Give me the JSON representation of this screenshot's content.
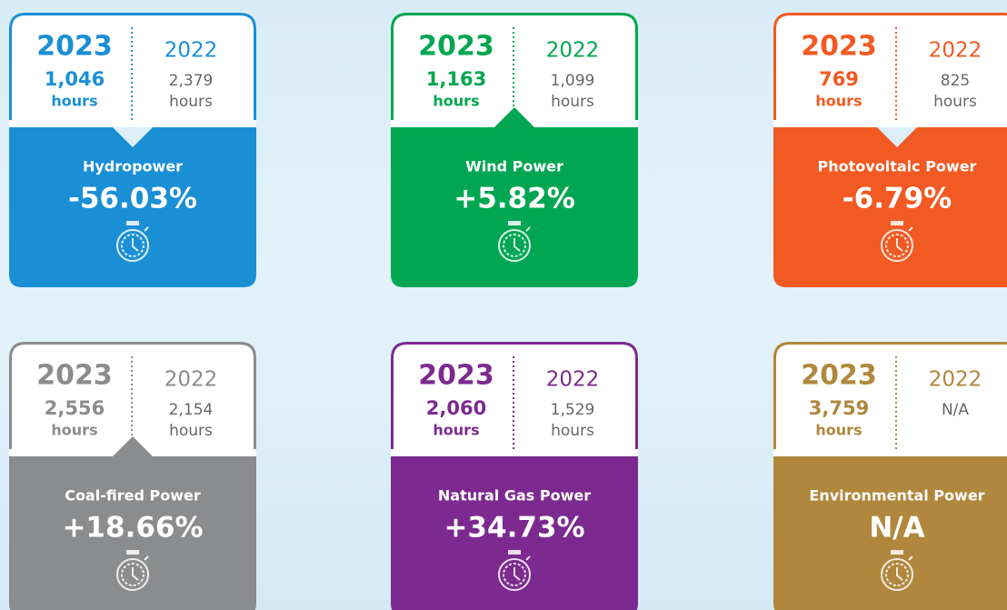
{
  "cards": [
    {
      "name": "Hydropower",
      "change": "-56.03%",
      "color": "#1b8fd5",
      "notch": "down",
      "current": {
        "year": "2023",
        "value": "1,046",
        "unit": "hours"
      },
      "previous": {
        "year": "2022",
        "value": "2,379",
        "unit": "hours"
      }
    },
    {
      "name": "Wind Power",
      "change": "+5.82%",
      "color": "#00a651",
      "notch": "up",
      "current": {
        "year": "2023",
        "value": "1,163",
        "unit": "hours"
      },
      "previous": {
        "year": "2022",
        "value": "1,099",
        "unit": "hours"
      }
    },
    {
      "name": "Photovoltaic Power",
      "change": "-6.79%",
      "color": "#f15a22",
      "notch": "down",
      "current": {
        "year": "2023",
        "value": "769",
        "unit": "hours"
      },
      "previous": {
        "year": "2022",
        "value": "825",
        "unit": "hours"
      }
    },
    {
      "name": "Coal-fired Power",
      "change": "+18.66%",
      "color": "#8b8c8e",
      "notch": "up",
      "current": {
        "year": "2023",
        "value": "2,556",
        "unit": "hours"
      },
      "previous": {
        "year": "2022",
        "value": "2,154",
        "unit": "hours"
      }
    },
    {
      "name": "Natural Gas Power",
      "change": "+34.73%",
      "color": "#7c2a8f",
      "notch": "none",
      "current": {
        "year": "2023",
        "value": "2,060",
        "unit": "hours"
      },
      "previous": {
        "year": "2022",
        "value": "1,529",
        "unit": "hours"
      }
    },
    {
      "name": "Environmental Power",
      "change": "N/A",
      "color": "#b0873c",
      "notch": "none",
      "current": {
        "year": "2023",
        "value": "3,759",
        "unit": "hours"
      },
      "previous": {
        "year": "2022",
        "value": "N/A"
      }
    }
  ]
}
